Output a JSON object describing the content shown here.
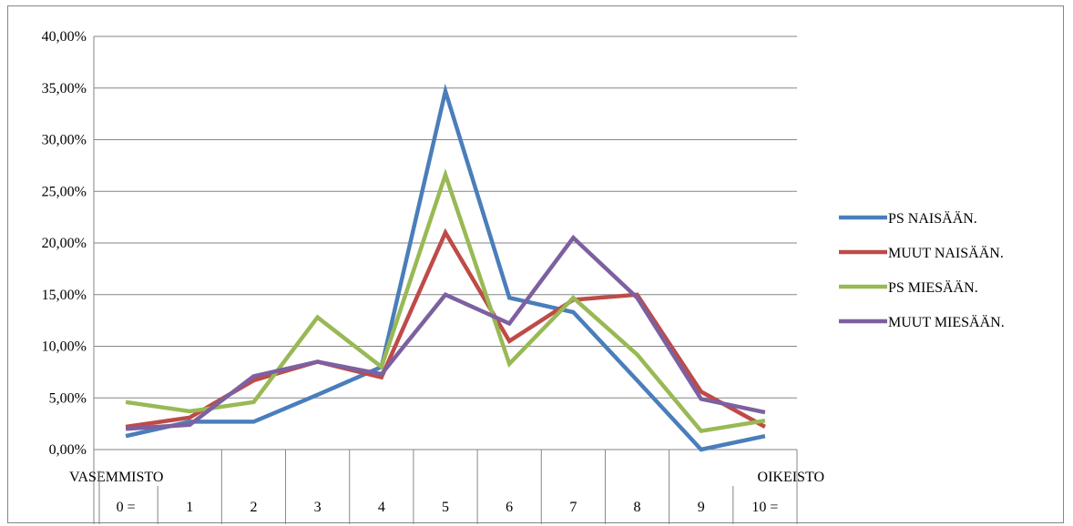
{
  "chart_data": {
    "type": "line",
    "title": "",
    "xlabel": "",
    "ylabel": "",
    "ylim": [
      0,
      40
    ],
    "yticks": [
      0,
      5,
      10,
      15,
      20,
      25,
      30,
      35,
      40
    ],
    "ytick_labels": [
      "0,00%",
      "5,00%",
      "10,00%",
      "15,00%",
      "20,00%",
      "25,00%",
      "30,00%",
      "35,00%",
      "40,00%"
    ],
    "categories": [
      "0 =",
      "1",
      "2",
      "3",
      "4",
      "5",
      "6",
      "7",
      "8",
      "9",
      "10 ="
    ],
    "category_sublabels": {
      "first": "VASEMMISTO",
      "last": "OIKEISTO"
    },
    "grid": true,
    "legend_position": "right",
    "series": [
      {
        "name": "PS NAISÄÄN.",
        "color": "#4A7EBB",
        "values": [
          1.3,
          2.7,
          2.7,
          5.3,
          8.0,
          34.7,
          14.7,
          13.3,
          6.7,
          0.0,
          1.3
        ]
      },
      {
        "name": "MUUT NAISÄÄN.",
        "color": "#BE4B48",
        "values": [
          2.2,
          3.1,
          6.7,
          8.5,
          7.0,
          21.0,
          10.5,
          14.5,
          15.0,
          5.6,
          2.2
        ]
      },
      {
        "name": "PS MIESÄÄN.",
        "color": "#98B954",
        "values": [
          4.6,
          3.7,
          4.6,
          12.8,
          8.0,
          26.6,
          8.3,
          14.7,
          9.2,
          1.8,
          2.8
        ]
      },
      {
        "name": "MUUT MIESÄÄN.",
        "color": "#7D60A0",
        "values": [
          2.0,
          2.4,
          7.1,
          8.5,
          7.3,
          15.0,
          12.2,
          20.5,
          14.7,
          4.9,
          3.6
        ]
      }
    ]
  }
}
